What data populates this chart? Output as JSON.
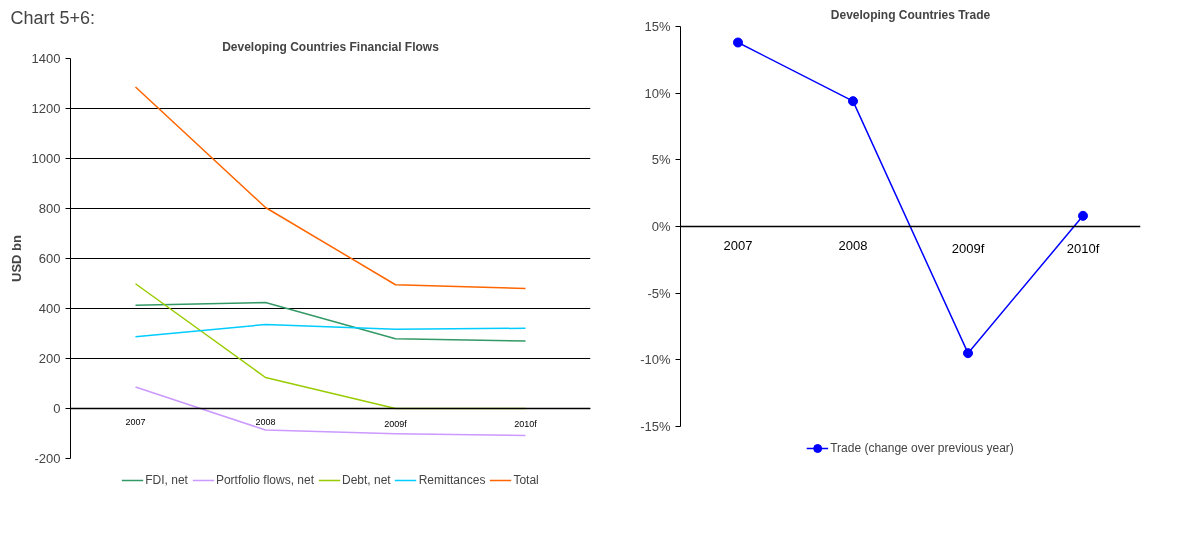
{
  "chart_data": [
    {
      "type": "line",
      "title": "Developing Countries Financial Flows",
      "ylabel": "USD bn",
      "annotations": [
        "Chart 5+6:"
      ],
      "categories": [
        "2007",
        "2008",
        "2009f",
        "2010f"
      ],
      "series": [
        {
          "name": "FDI, net",
          "color": "#339966",
          "values": [
            413,
            424,
            279,
            270
          ]
        },
        {
          "name": "Portfolio flows, net",
          "color": "#cc99ff",
          "values": [
            86,
            -86,
            -101,
            -108
          ]
        },
        {
          "name": "Debt, net",
          "color": "#99cc00",
          "values": [
            499,
            124,
            0,
            0
          ]
        },
        {
          "name": "Remittances",
          "color": "#00ccff",
          "values": [
            287,
            336,
            317,
            321
          ]
        },
        {
          "name": "Total",
          "color": "#ff6600",
          "values": [
            1286,
            804,
            495,
            480
          ]
        }
      ],
      "ylim": [
        -200,
        1400
      ],
      "yticks": [
        -200,
        0,
        200,
        400,
        600,
        800,
        1000,
        1200,
        1400
      ],
      "grid": "y",
      "legend": "bottom",
      "marker": "none",
      "line_style": "solid"
    },
    {
      "type": "line",
      "title": "Developing Countries Trade",
      "categories": [
        "2007",
        "2008",
        "2009f",
        "2010f"
      ],
      "series": [
        {
          "name": "Trade (change over previous year)",
          "color": "#0000ff",
          "values": [
            13.8,
            9.4,
            -9.5,
            0.8
          ]
        }
      ],
      "ylim": [
        -15,
        15
      ],
      "yticks": [
        {
          "value": -15,
          "label": "-15%"
        },
        {
          "value": -10,
          "label": "-10%"
        },
        {
          "value": -5,
          "label": "-5%"
        },
        {
          "value": 0,
          "label": "0%"
        },
        {
          "value": 5,
          "label": "5%"
        },
        {
          "value": 10,
          "label": "10%"
        },
        {
          "value": 15,
          "label": "15%"
        }
      ],
      "grid": false,
      "legend": "bottom",
      "marker": "circle",
      "line_style": "solid"
    }
  ]
}
